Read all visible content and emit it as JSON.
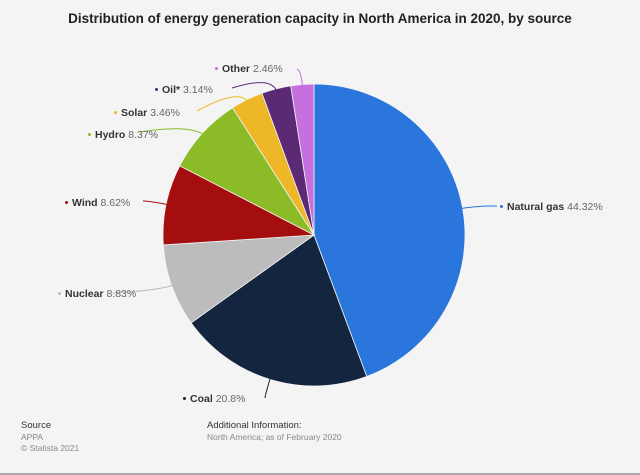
{
  "chart_data": {
    "type": "pie",
    "title": "Distribution of energy generation capacity in North America in 2020, by source",
    "categories": [
      "Natural gas",
      "Coal",
      "Nuclear",
      "Wind",
      "Hydro",
      "Solar",
      "Oil*",
      "Other"
    ],
    "values": [
      44.32,
      20.8,
      8.83,
      8.62,
      8.37,
      3.46,
      3.14,
      2.46
    ],
    "unit": "%",
    "colors": [
      "#2a76dd",
      "#13253f",
      "#bcbcbc",
      "#a50e0e",
      "#8bbb27",
      "#edb727",
      "#5c2a75",
      "#c66fdf"
    ],
    "legend": "none (inline labels)",
    "start_angle": "12 o'clock, clockwise"
  },
  "title": "Distribution of energy generation capacity in North America in 2020, by source",
  "labels": [
    {
      "name": "Natural gas",
      "value": "44.32%"
    },
    {
      "name": "Coal",
      "value": "20.8%"
    },
    {
      "name": "Nuclear",
      "value": "8.83%"
    },
    {
      "name": "Wind",
      "value": "8.62%"
    },
    {
      "name": "Hydro",
      "value": "8.37%"
    },
    {
      "name": "Solar",
      "value": "3.46%"
    },
    {
      "name": "Oil*",
      "value": "3.14%"
    },
    {
      "name": "Other",
      "value": "2.46%"
    }
  ],
  "footer": {
    "source_heading": "Source",
    "source": "APPA",
    "copyright": "© Statista 2021",
    "additional_heading": "Additional Information:",
    "additional": "North America; as of February 2020"
  }
}
